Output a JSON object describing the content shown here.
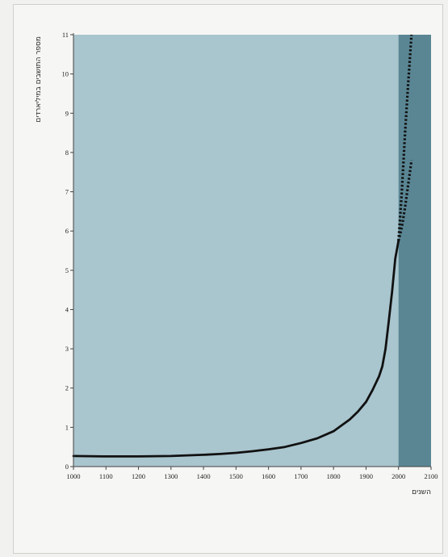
{
  "chart_data": {
    "type": "line",
    "title": "",
    "xlabel": "השנים",
    "ylabel": "מספר התושבים במיליארדים",
    "xlim": [
      1000,
      2100
    ],
    "ylim": [
      0,
      11
    ],
    "x_ticks": [
      1000,
      1100,
      1200,
      1300,
      1400,
      1500,
      1600,
      1700,
      1800,
      1900,
      2000,
      2100
    ],
    "y_ticks": [
      0,
      1,
      2,
      3,
      4,
      5,
      6,
      7,
      8,
      9,
      10,
      11
    ],
    "grid": false,
    "colors": {
      "plot_bg": "#a9c5ce",
      "projection_band": "#5a8694",
      "line": "#111111",
      "axis": "#444444"
    },
    "projection_band_x": [
      2000,
      2100
    ],
    "series": [
      {
        "style": "solid",
        "x": [
          1000,
          1100,
          1200,
          1300,
          1400,
          1450,
          1500,
          1550,
          1600,
          1650,
          1700,
          1750,
          1800,
          1825,
          1850,
          1875,
          1900,
          1920,
          1940,
          1950,
          1960,
          1970,
          1980,
          1990,
          2000
        ],
        "y": [
          0.27,
          0.26,
          0.26,
          0.27,
          0.3,
          0.32,
          0.35,
          0.39,
          0.44,
          0.5,
          0.6,
          0.72,
          0.9,
          1.05,
          1.2,
          1.4,
          1.65,
          1.95,
          2.3,
          2.55,
          3.0,
          3.7,
          4.45,
          5.3,
          5.75
        ]
      },
      {
        "style": "dotted",
        "x": [
          2000,
          2010,
          2020,
          2030,
          2040
        ],
        "y": [
          5.75,
          7.0,
          8.5,
          9.8,
          11.0
        ]
      },
      {
        "style": "dotted",
        "x": [
          2000,
          2010,
          2020,
          2030,
          2040
        ],
        "y": [
          5.75,
          6.1,
          6.6,
          7.2,
          7.8
        ]
      }
    ]
  }
}
